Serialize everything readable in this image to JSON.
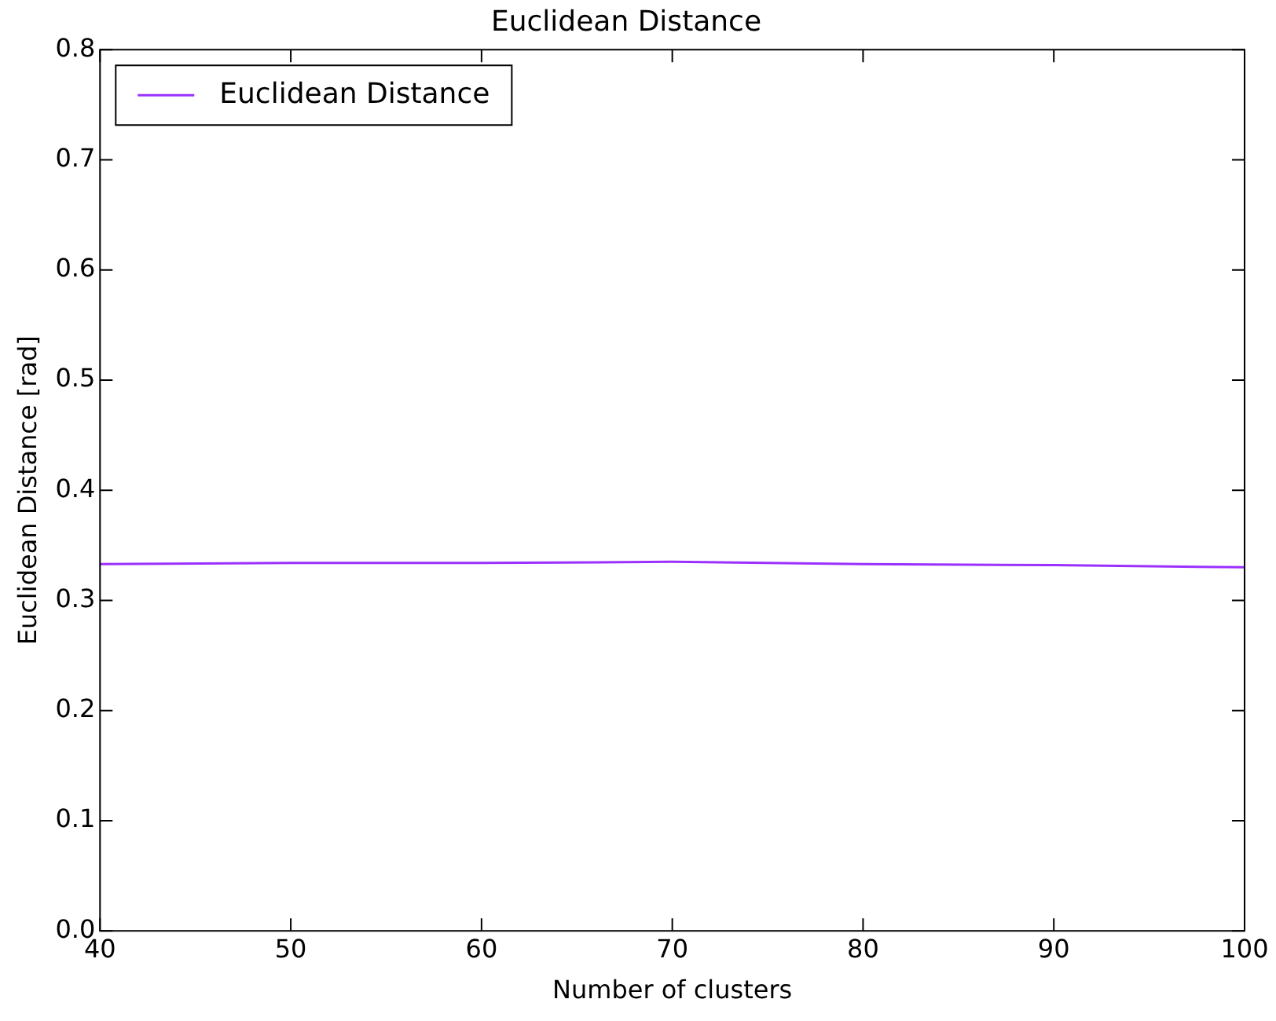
{
  "chart_data": {
    "type": "line",
    "title": "Euclidean Distance",
    "xlabel": "Number of clusters",
    "ylabel": "Euclidean Distance [rad]",
    "x": [
      40,
      50,
      60,
      70,
      80,
      90,
      100
    ],
    "series": [
      {
        "name": "Euclidean Distance",
        "color": "#9b30ff",
        "values": [
          0.333,
          0.334,
          0.334,
          0.335,
          0.333,
          0.332,
          0.33
        ]
      }
    ],
    "xlim": [
      40,
      100
    ],
    "xticks": [
      40,
      50,
      60,
      70,
      80,
      90,
      100
    ],
    "ylim": [
      0,
      0.8
    ],
    "yticks": [
      {
        "value": 0,
        "label": "0.0"
      },
      0.1,
      0.2,
      0.3,
      0.4,
      0.5,
      0.6,
      0.7,
      0.8
    ],
    "grid": false,
    "legend": "top left",
    "marker": "none",
    "line_style": "solid"
  }
}
